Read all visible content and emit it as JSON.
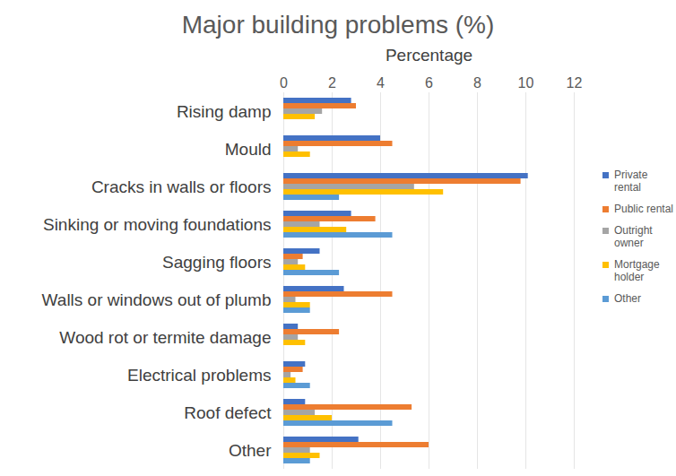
{
  "chart_data": {
    "type": "bar",
    "orientation": "horizontal",
    "title": "Major building problems (%)",
    "xlabel": "Percentage",
    "categories": [
      "Rising damp",
      "Mould",
      "Cracks in walls or floors",
      "Sinking or moving foundations",
      "Sagging floors",
      "Walls or windows out of plumb",
      "Wood rot or termite damage",
      "Electrical problems",
      "Roof defect",
      "Other"
    ],
    "series": [
      {
        "name": "Private rental",
        "color": "#4472c4",
        "values": [
          2.8,
          4.0,
          10.1,
          2.8,
          1.5,
          2.5,
          0.6,
          0.9,
          0.9,
          3.1
        ]
      },
      {
        "name": "Public rental",
        "color": "#ed7d31",
        "values": [
          3.0,
          4.5,
          9.8,
          3.8,
          0.8,
          4.5,
          2.3,
          0.8,
          5.3,
          6.0
        ]
      },
      {
        "name": "Outright owner",
        "color": "#a5a5a5",
        "values": [
          1.6,
          0.6,
          5.4,
          1.5,
          0.6,
          0.5,
          0.6,
          0.3,
          1.3,
          1.1
        ]
      },
      {
        "name": "Mortgage holder",
        "color": "#ffc000",
        "values": [
          1.3,
          1.1,
          6.6,
          2.6,
          0.9,
          1.1,
          0.9,
          0.5,
          2.0,
          1.5
        ]
      },
      {
        "name": "Other",
        "color": "#5b9bd5",
        "values": [
          0,
          0,
          2.3,
          4.5,
          2.3,
          1.1,
          0,
          1.1,
          4.5,
          1.1
        ]
      }
    ],
    "xlim": [
      0,
      12
    ],
    "xticks": [
      0,
      2,
      4,
      6,
      8,
      10,
      12
    ],
    "grid": true,
    "legend": "right"
  }
}
